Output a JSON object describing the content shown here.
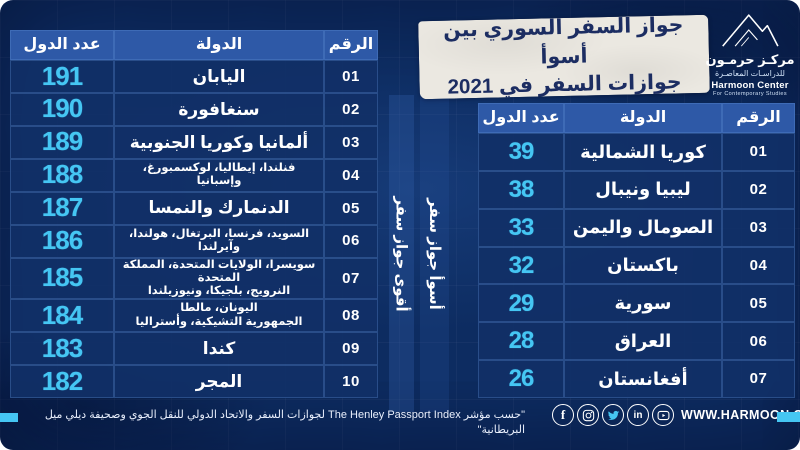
{
  "page": {
    "background": "#0d2c61",
    "accent_cyan": "#45c6f3",
    "header_blue": "#2e59a7",
    "cell_blue": "#113067",
    "paper": "#ebe8e1",
    "title_text": "#1c2d62"
  },
  "title": {
    "line1": "جواز السفر السوري بين أسوأ",
    "line2": "جوازات السفر في 2021"
  },
  "logo": {
    "arabic_name": "مركـز حرمـون",
    "arabic_sub": "للدراسـات المعاصـرة",
    "english_name": "Harmoon Center",
    "english_sub": "For Contemporary Studies"
  },
  "best_table": {
    "label": "أقوى جواز سفر",
    "headers": {
      "rank": "الرقم",
      "country": "الدولة",
      "count": "عدد الدول"
    },
    "rows": [
      {
        "rank": "01",
        "country": "اليابان",
        "count": "191"
      },
      {
        "rank": "02",
        "country": "سنغافورة",
        "count": "190"
      },
      {
        "rank": "03",
        "country": "ألمانيا وكوريا الجنوبية",
        "count": "189"
      },
      {
        "rank": "04",
        "country": "فنلندا، إيطاليا، لوكسمبورغ، وإسبانيا",
        "count": "188",
        "small": true
      },
      {
        "rank": "05",
        "country": "الدنمارك والنمسا",
        "count": "187"
      },
      {
        "rank": "06",
        "country": "السويد، فرنسا، البرتغال، هولندا، وآيرلندا",
        "count": "186",
        "small": true
      },
      {
        "rank": "07",
        "country": "سويسرا، الولايات المتحدة، المملكة المتحدة\nالنرويج، بلجيكا، ونيوزيلندا",
        "count": "185",
        "small": true
      },
      {
        "rank": "08",
        "country": "اليونان، مالطا\nالجمهورية التشيكية، وأستراليا",
        "count": "184",
        "small": true
      },
      {
        "rank": "09",
        "country": "كندا",
        "count": "183"
      },
      {
        "rank": "10",
        "country": "المجر",
        "count": "182"
      }
    ]
  },
  "worst_table": {
    "label": "أسوأ جواز سفر",
    "headers": {
      "rank": "الرقم",
      "country": "الدولة",
      "count": "عدد الدول"
    },
    "rows": [
      {
        "rank": "01",
        "country": "كوريا الشمالية",
        "count": "39"
      },
      {
        "rank": "02",
        "country": "ليبيا ونيبال",
        "count": "38"
      },
      {
        "rank": "03",
        "country": "الصومال واليمن",
        "count": "33"
      },
      {
        "rank": "04",
        "country": "باكستان",
        "count": "32"
      },
      {
        "rank": "05",
        "country": "سورية",
        "count": "29"
      },
      {
        "rank": "06",
        "country": "العراق",
        "count": "28"
      },
      {
        "rank": "07",
        "country": "أفغانستان",
        "count": "26"
      }
    ]
  },
  "footer": {
    "source": "\"حسب مؤشر The Henley Passport Index لجوازات السفر والاتحاد الدولي للنقل الجوي وصحيفة ديلي ميل البريطانية\"",
    "website": "WWW.HARMOON.ORG",
    "social_icons": [
      "facebook-icon",
      "instagram-icon",
      "twitter-icon",
      "linkedin-icon",
      "youtube-icon"
    ]
  },
  "chart_data": [
    {
      "type": "table",
      "title": "أقوى جواز سفر",
      "columns": [
        "الرقم",
        "الدولة",
        "عدد الدول"
      ],
      "rows": [
        [
          "01",
          "اليابان",
          191
        ],
        [
          "02",
          "سنغافورة",
          190
        ],
        [
          "03",
          "ألمانيا وكوريا الجنوبية",
          189
        ],
        [
          "04",
          "فنلندا، إيطاليا، لوكسمبورغ، وإسبانيا",
          188
        ],
        [
          "05",
          "الدنمارك والنمسا",
          187
        ],
        [
          "06",
          "السويد، فرنسا، البرتغال، هولندا، وآيرلندا",
          186
        ],
        [
          "07",
          "سويسرا، الولايات المتحدة، المملكة المتحدة النرويج، بلجيكا، ونيوزيلندا",
          185
        ],
        [
          "08",
          "اليونان، مالطا الجمهورية التشيكية، وأستراليا",
          184
        ],
        [
          "09",
          "كندا",
          183
        ],
        [
          "10",
          "المجر",
          182
        ]
      ]
    },
    {
      "type": "table",
      "title": "أسوأ جواز سفر",
      "columns": [
        "الرقم",
        "الدولة",
        "عدد الدول"
      ],
      "rows": [
        [
          "01",
          "كوريا الشمالية",
          39
        ],
        [
          "02",
          "ليبيا ونيبال",
          38
        ],
        [
          "03",
          "الصومال واليمن",
          33
        ],
        [
          "04",
          "باكستان",
          32
        ],
        [
          "05",
          "سورية",
          29
        ],
        [
          "06",
          "العراق",
          28
        ],
        [
          "07",
          "أفغانستان",
          26
        ]
      ]
    }
  ]
}
